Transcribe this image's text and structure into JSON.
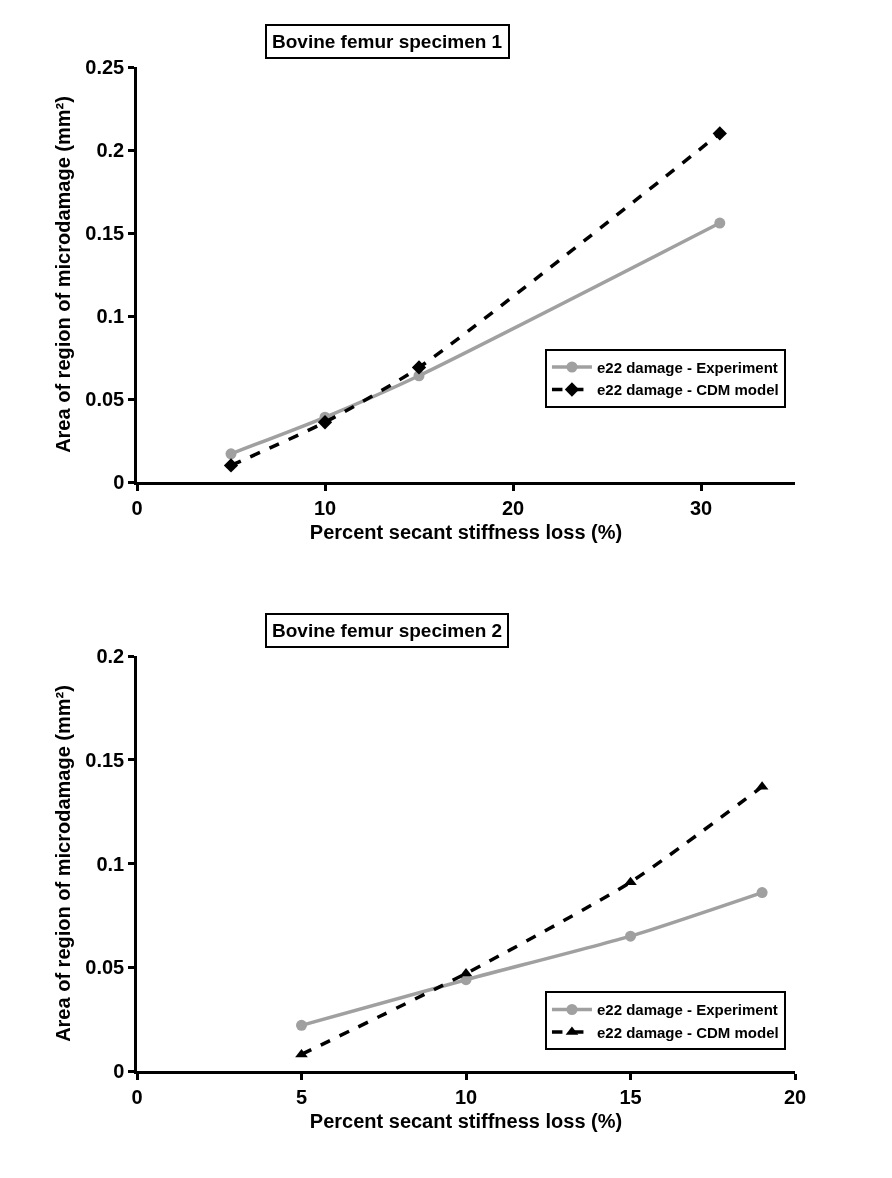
{
  "chart_data": [
    {
      "type": "line",
      "title": "Bovine femur specimen 1",
      "xlabel": "Percent secant stiffness loss (%)",
      "ylabel": "Area of region of microdamage (mm²)",
      "x": [
        5,
        10,
        15,
        31
      ],
      "xlim": [
        0,
        35
      ],
      "xticks": [
        0,
        10,
        20,
        30
      ],
      "ylim": [
        0,
        0.25
      ],
      "yticks": [
        0,
        0.05,
        0.1,
        0.15,
        0.2,
        0.25
      ],
      "grid": false,
      "legend": "right",
      "series": [
        {
          "name": "e22 damage - Experiment",
          "color": "#a0a0a0",
          "marker": "circle",
          "line_style": "solid",
          "values": [
            0.017,
            0.039,
            0.064,
            0.156
          ]
        },
        {
          "name": "e22 damage - CDM model",
          "color": "#000000",
          "marker": "diamond",
          "line_style": "dashed",
          "values": [
            0.01,
            0.036,
            0.069,
            0.21
          ]
        }
      ]
    },
    {
      "type": "line",
      "title": "Bovine femur specimen 2",
      "xlabel": "Percent secant stiffness loss (%)",
      "ylabel": "Area of region of microdamage (mm²)",
      "x": [
        5,
        10,
        15,
        19
      ],
      "xlim": [
        0,
        20
      ],
      "xticks": [
        0,
        5,
        10,
        15,
        20
      ],
      "ylim": [
        0,
        0.2
      ],
      "yticks": [
        0,
        0.05,
        0.1,
        0.15,
        0.2
      ],
      "grid": false,
      "legend": "bottom right",
      "series": [
        {
          "name": "e22 damage - Experiment",
          "color": "#a0a0a0",
          "marker": "circle",
          "line_style": "solid",
          "values": [
            0.022,
            0.044,
            0.065,
            0.086
          ]
        },
        {
          "name": "e22 damage - CDM model",
          "color": "#000000",
          "marker": "triangle",
          "line_style": "dashed",
          "values": [
            0.008,
            0.047,
            0.091,
            0.137
          ]
        }
      ]
    }
  ]
}
